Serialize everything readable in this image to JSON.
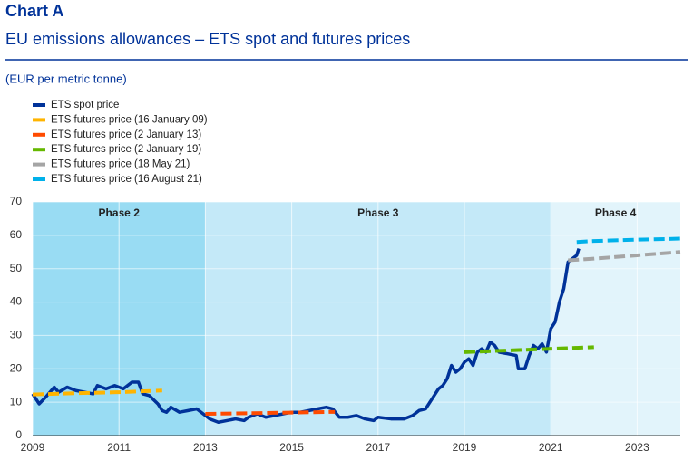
{
  "chart_data": {
    "type": "line",
    "title": "Chart A",
    "subtitle": "EU emissions allowances – ETS spot and futures prices",
    "y_axis_label": "(EUR per metric tonne)",
    "xlim": [
      2009,
      2024
    ],
    "xticks": [
      2009,
      2011,
      2013,
      2015,
      2017,
      2019,
      2021,
      2023
    ],
    "ylim": [
      0,
      70
    ],
    "yticks": [
      0,
      10,
      20,
      30,
      40,
      50,
      60,
      70
    ],
    "grid": true,
    "phases": [
      {
        "label": "Phase 2",
        "start": 2009,
        "end": 2013,
        "color": "#99dcf3"
      },
      {
        "label": "Phase 3",
        "start": 2013,
        "end": 2021,
        "color": "#c4e9f8"
      },
      {
        "label": "Phase 4",
        "start": 2021,
        "end": 2024,
        "color": "#e2f4fb"
      }
    ],
    "series": [
      {
        "name": "ETS spot price",
        "color": "#003299",
        "dashed": false,
        "x": [
          2009.0,
          2009.15,
          2009.3,
          2009.5,
          2009.6,
          2009.8,
          2010.0,
          2010.2,
          2010.4,
          2010.5,
          2010.7,
          2010.9,
          2011.1,
          2011.3,
          2011.45,
          2011.55,
          2011.7,
          2011.9,
          2012.0,
          2012.1,
          2012.2,
          2012.4,
          2012.6,
          2012.8,
          2012.95,
          2013.1,
          2013.3,
          2013.5,
          2013.7,
          2013.9,
          2014.0,
          2014.2,
          2014.4,
          2014.6,
          2014.8,
          2015.0,
          2015.2,
          2015.4,
          2015.6,
          2015.8,
          2015.95,
          2016.1,
          2016.3,
          2016.5,
          2016.7,
          2016.9,
          2017.0,
          2017.3,
          2017.6,
          2017.8,
          2017.95,
          2018.1,
          2018.2,
          2018.4,
          2018.5,
          2018.6,
          2018.7,
          2018.8,
          2018.9,
          2019.0,
          2019.1,
          2019.2,
          2019.3,
          2019.4,
          2019.5,
          2019.6,
          2019.7,
          2019.8,
          2020.0,
          2020.2,
          2020.25,
          2020.4,
          2020.5,
          2020.6,
          2020.7,
          2020.8,
          2020.9,
          2021.0,
          2021.1,
          2021.2,
          2021.3,
          2021.4,
          2021.5,
          2021.6,
          2021.65
        ],
        "values": [
          12.5,
          9.5,
          11.5,
          14.5,
          13,
          14.5,
          13.5,
          13,
          12.5,
          15,
          14,
          15,
          14,
          16,
          16,
          12.5,
          12,
          9.5,
          7.5,
          7,
          8.5,
          7,
          7.5,
          8,
          6.5,
          5,
          4,
          4.5,
          5,
          4.5,
          5.5,
          6.5,
          5.5,
          6,
          6.5,
          7,
          7,
          7.5,
          8,
          8.5,
          8,
          5.5,
          5.5,
          6,
          5,
          4.5,
          5.5,
          5,
          5,
          6,
          7.5,
          8,
          10,
          14,
          15,
          17,
          21,
          19,
          20,
          22,
          23,
          21,
          25,
          26,
          25,
          28,
          27,
          25,
          24.5,
          24,
          20,
          20,
          24,
          27,
          26,
          27.5,
          25,
          32,
          34,
          40,
          44,
          52,
          53,
          54,
          56
        ]
      },
      {
        "name": "ETS futures price (16 January 09)",
        "color": "#ffb400",
        "dashed": true,
        "x": [
          2009,
          2010,
          2011,
          2012
        ],
        "values": [
          12.3,
          12.7,
          13,
          13.5
        ]
      },
      {
        "name": "ETS futures price (2 January 13)",
        "color": "#ff4b00",
        "dashed": true,
        "x": [
          2013,
          2014,
          2015,
          2016
        ],
        "values": [
          6.5,
          6.7,
          6.9,
          7.1
        ]
      },
      {
        "name": "ETS futures price (2 January 19)",
        "color": "#65b800",
        "dashed": true,
        "x": [
          2019,
          2020,
          2021,
          2022
        ],
        "values": [
          25,
          25.5,
          26,
          26.5
        ]
      },
      {
        "name": "ETS futures price (18 May 21)",
        "color": "#a5a5a5",
        "dashed": true,
        "x": [
          2021.4,
          2022,
          2023,
          2024
        ],
        "values": [
          52.5,
          53,
          54,
          55
        ]
      },
      {
        "name": "ETS futures price (16 August 21)",
        "color": "#00b1ea",
        "dashed": true,
        "x": [
          2021.6,
          2022,
          2023,
          2024
        ],
        "values": [
          58,
          58.3,
          58.7,
          59
        ]
      }
    ]
  }
}
